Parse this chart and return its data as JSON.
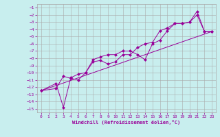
{
  "xlabel": "Windchill (Refroidissement éolien,°C)",
  "bg_color": "#c8eeee",
  "grid_color": "#aaaaaa",
  "line_color": "#990099",
  "xlim": [
    -0.5,
    23.5
  ],
  "ylim": [
    -15.5,
    -0.5
  ],
  "xticks": [
    0,
    1,
    2,
    3,
    4,
    5,
    6,
    7,
    8,
    9,
    10,
    11,
    12,
    13,
    14,
    15,
    16,
    17,
    18,
    19,
    20,
    21,
    22,
    23
  ],
  "yticks": [
    -15,
    -14,
    -13,
    -12,
    -11,
    -10,
    -9,
    -8,
    -7,
    -6,
    -5,
    -4,
    -3,
    -2,
    -1
  ],
  "line1_x": [
    0,
    2,
    3,
    4,
    5,
    6,
    7,
    8,
    9,
    10,
    11,
    12,
    13,
    14,
    15,
    16,
    17,
    18,
    19,
    20,
    21,
    22,
    23
  ],
  "line1_y": [
    -12.5,
    -11.5,
    -14.8,
    -10.7,
    -10.2,
    -10.0,
    -8.2,
    -7.8,
    -7.5,
    -7.5,
    -7.0,
    -7.0,
    -7.5,
    -8.2,
    -6.0,
    -5.5,
    -4.2,
    -3.2,
    -3.2,
    -3.0,
    -1.5,
    -4.3,
    -4.3
  ],
  "line2_x": [
    0,
    2,
    3,
    4,
    5,
    6,
    7,
    8,
    9,
    10,
    11,
    12,
    13,
    14,
    15,
    16,
    17,
    18,
    19,
    20,
    21,
    22,
    23
  ],
  "line2_y": [
    -12.5,
    -12.2,
    -10.5,
    -10.8,
    -11.0,
    -10.0,
    -8.5,
    -8.3,
    -8.8,
    -8.5,
    -7.5,
    -7.5,
    -6.5,
    -6.0,
    -5.8,
    -4.2,
    -3.8,
    -3.2,
    -3.2,
    -3.0,
    -2.0,
    -4.3,
    -4.3
  ],
  "line3_x": [
    0,
    23
  ],
  "line3_y": [
    -12.5,
    -4.3
  ]
}
